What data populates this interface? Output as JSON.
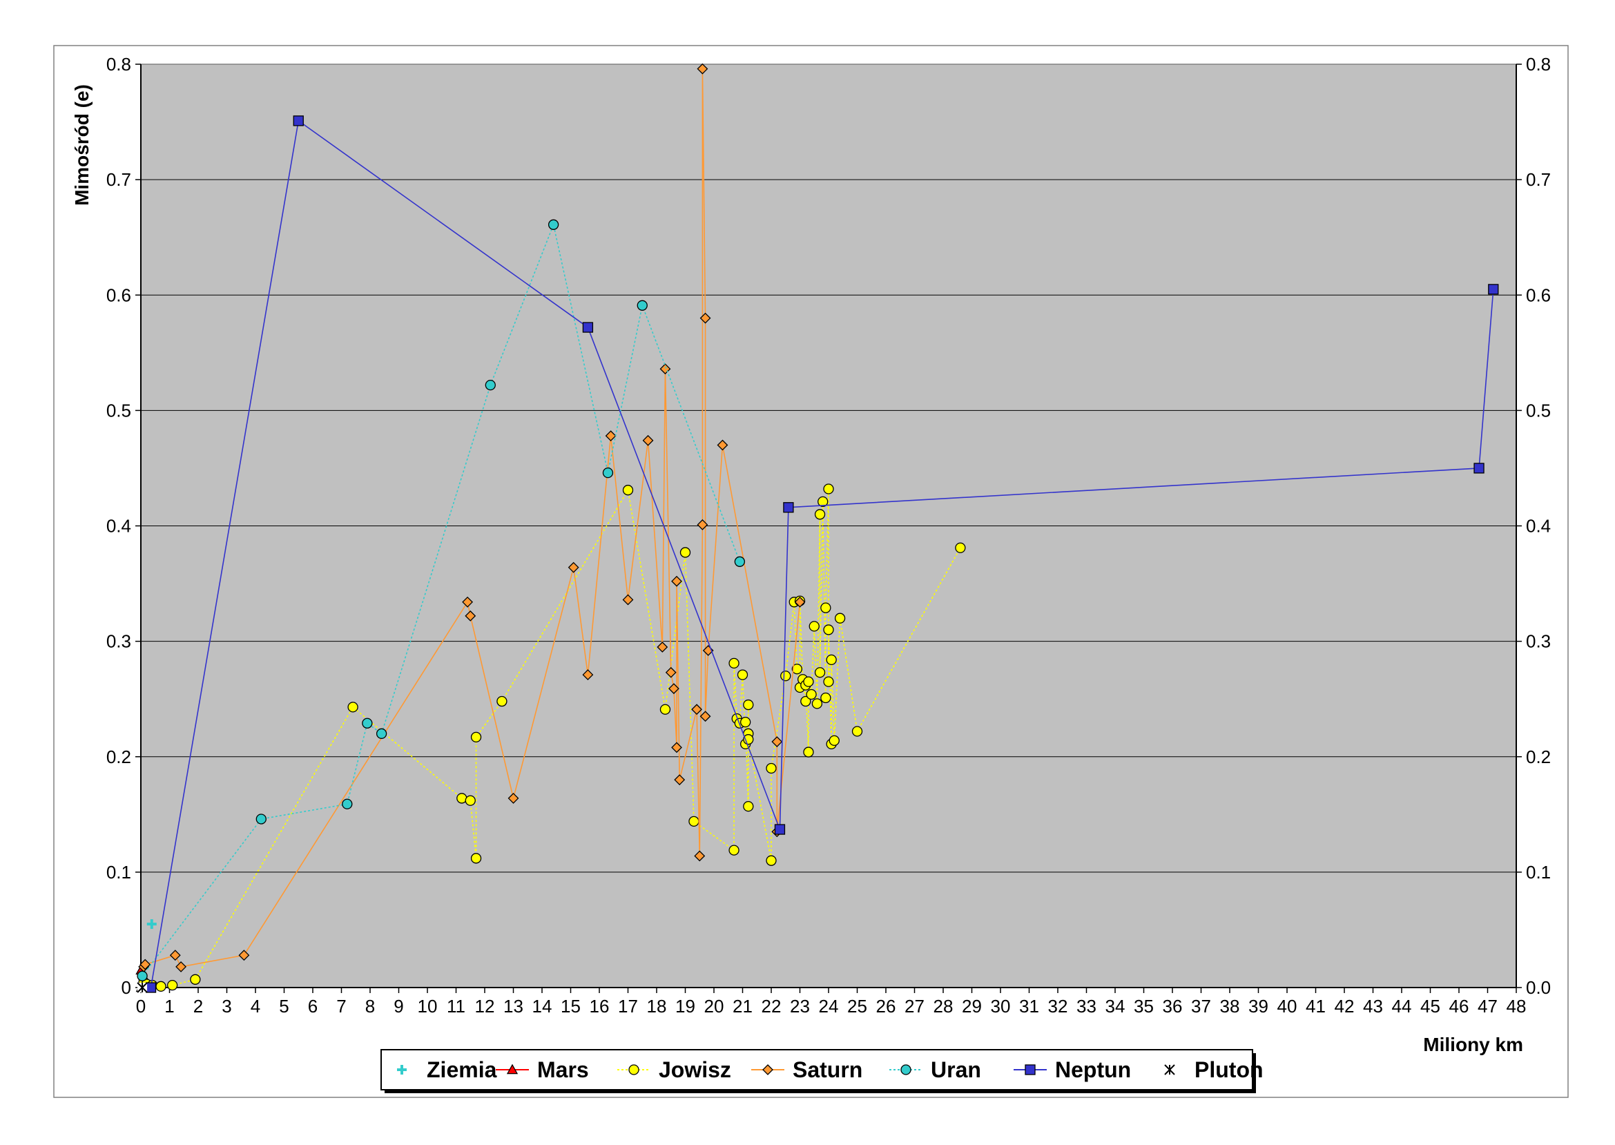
{
  "chart_data": {
    "type": "scatter",
    "title": "",
    "xlabel": "Miliony km",
    "ylabel": "Mimośród (e)",
    "xlim": [
      0,
      48
    ],
    "ylim": [
      0,
      0.8
    ],
    "x_ticks": [
      "0",
      "1",
      "2",
      "3",
      "4",
      "5",
      "6",
      "7",
      "8",
      "9",
      "10",
      "11",
      "12",
      "13",
      "14",
      "15",
      "16",
      "17",
      "18",
      "19",
      "20",
      "21",
      "22",
      "23",
      "24",
      "25",
      "26",
      "27",
      "28",
      "29",
      "30",
      "31",
      "32",
      "33",
      "34",
      "35",
      "36",
      "37",
      "38",
      "39",
      "40",
      "41",
      "42",
      "43",
      "44",
      "45",
      "46",
      "47",
      "48"
    ],
    "y_ticks_left": [
      "0",
      "0.1",
      "0.2",
      "0.3",
      "0.4",
      "0.5",
      "0.6",
      "0.7",
      "0.8"
    ],
    "y_ticks_right": [
      "0.0",
      "0.1",
      "0.2",
      "0.3",
      "0.4",
      "0.5",
      "0.6",
      "0.7",
      "0.8"
    ],
    "grid": "horizontal",
    "legend_position": "bottom",
    "background_color": "#c0c0c0",
    "series": [
      {
        "name": "Ziemia",
        "color": "#33cccc",
        "marker": "plus",
        "line": false,
        "points": [
          [
            0.38,
            0.055
          ]
        ]
      },
      {
        "name": "Mars",
        "color": "#ff0000",
        "marker": "triangle",
        "line": true,
        "dashed": false,
        "points": [
          [
            0.01,
            0.015
          ],
          [
            0.02,
            0.0
          ]
        ]
      },
      {
        "name": "Jowisz",
        "color": "#ffff00",
        "marker": "circle",
        "line": true,
        "dashed": true,
        "points": [
          [
            0.1,
            0.005
          ],
          [
            0.2,
            0.003
          ],
          [
            0.4,
            0.002
          ],
          [
            0.7,
            0.001
          ],
          [
            1.1,
            0.002
          ],
          [
            1.9,
            0.007
          ],
          [
            7.4,
            0.243
          ],
          [
            11.2,
            0.164
          ],
          [
            11.5,
            0.162
          ],
          [
            11.7,
            0.112
          ],
          [
            11.7,
            0.217
          ],
          [
            12.6,
            0.248
          ],
          [
            17.0,
            0.431
          ],
          [
            18.3,
            0.241
          ],
          [
            19.0,
            0.377
          ],
          [
            19.3,
            0.144
          ],
          [
            20.7,
            0.119
          ],
          [
            20.7,
            0.281
          ],
          [
            20.8,
            0.233
          ],
          [
            20.9,
            0.229
          ],
          [
            21.0,
            0.271
          ],
          [
            21.1,
            0.211
          ],
          [
            21.1,
            0.23
          ],
          [
            21.2,
            0.157
          ],
          [
            21.2,
            0.245
          ],
          [
            21.2,
            0.22
          ],
          [
            21.2,
            0.215
          ],
          [
            22.0,
            0.11
          ],
          [
            22.0,
            0.19
          ],
          [
            22.5,
            0.27
          ],
          [
            22.8,
            0.334
          ],
          [
            22.9,
            0.276
          ],
          [
            23.0,
            0.26
          ],
          [
            23.0,
            0.335
          ],
          [
            23.1,
            0.267
          ],
          [
            23.2,
            0.248
          ],
          [
            23.2,
            0.262
          ],
          [
            23.3,
            0.204
          ],
          [
            23.3,
            0.265
          ],
          [
            23.4,
            0.254
          ],
          [
            23.5,
            0.313
          ],
          [
            23.6,
            0.246
          ],
          [
            23.7,
            0.41
          ],
          [
            23.7,
            0.273
          ],
          [
            23.8,
            0.421
          ],
          [
            23.9,
            0.251
          ],
          [
            23.9,
            0.329
          ],
          [
            24.0,
            0.432
          ],
          [
            24.0,
            0.265
          ],
          [
            24.0,
            0.31
          ],
          [
            24.1,
            0.211
          ],
          [
            24.1,
            0.284
          ],
          [
            24.2,
            0.214
          ],
          [
            24.4,
            0.32
          ],
          [
            25.0,
            0.222
          ],
          [
            28.6,
            0.381
          ]
        ]
      },
      {
        "name": "Saturn",
        "color": "#ff9933",
        "marker": "diamond",
        "line": true,
        "dashed": false,
        "points": [
          [
            0.1,
            0.018
          ],
          [
            0.15,
            0.02
          ],
          [
            1.2,
            0.028
          ],
          [
            1.4,
            0.018
          ],
          [
            3.6,
            0.028
          ],
          [
            11.4,
            0.334
          ],
          [
            11.5,
            0.322
          ],
          [
            13.0,
            0.164
          ],
          [
            15.1,
            0.364
          ],
          [
            15.6,
            0.271
          ],
          [
            16.4,
            0.478
          ],
          [
            17.0,
            0.336
          ],
          [
            17.7,
            0.474
          ],
          [
            18.2,
            0.295
          ],
          [
            18.3,
            0.536
          ],
          [
            18.5,
            0.273
          ],
          [
            18.6,
            0.259
          ],
          [
            18.7,
            0.208
          ],
          [
            18.7,
            0.352
          ],
          [
            18.8,
            0.18
          ],
          [
            19.4,
            0.241
          ],
          [
            19.5,
            0.114
          ],
          [
            19.6,
            0.401
          ],
          [
            19.6,
            0.796
          ],
          [
            19.7,
            0.58
          ],
          [
            19.7,
            0.235
          ],
          [
            19.8,
            0.292
          ],
          [
            20.3,
            0.47
          ],
          [
            22.2,
            0.213
          ],
          [
            22.2,
            0.135
          ],
          [
            23.0,
            0.334
          ]
        ]
      },
      {
        "name": "Uran",
        "color": "#33cccc",
        "marker": "circle",
        "line": true,
        "dashed": true,
        "points": [
          [
            0.05,
            0.01
          ],
          [
            4.2,
            0.146
          ],
          [
            7.2,
            0.159
          ],
          [
            7.9,
            0.229
          ],
          [
            8.4,
            0.22
          ],
          [
            12.2,
            0.522
          ],
          [
            14.4,
            0.661
          ],
          [
            16.3,
            0.446
          ],
          [
            17.5,
            0.591
          ],
          [
            20.9,
            0.369
          ]
        ]
      },
      {
        "name": "Neptun",
        "color": "#3333cc",
        "marker": "square",
        "line": true,
        "dashed": false,
        "points": [
          [
            0.35,
            0.0
          ],
          [
            5.5,
            0.751
          ],
          [
            15.6,
            0.572
          ],
          [
            22.3,
            0.137
          ],
          [
            22.6,
            0.416
          ],
          [
            46.7,
            0.45
          ],
          [
            47.2,
            0.605
          ]
        ]
      },
      {
        "name": "Pluton",
        "color": "#000000",
        "marker": "star",
        "line": false,
        "points": [
          [
            0.05,
            0.0
          ]
        ]
      }
    ]
  }
}
